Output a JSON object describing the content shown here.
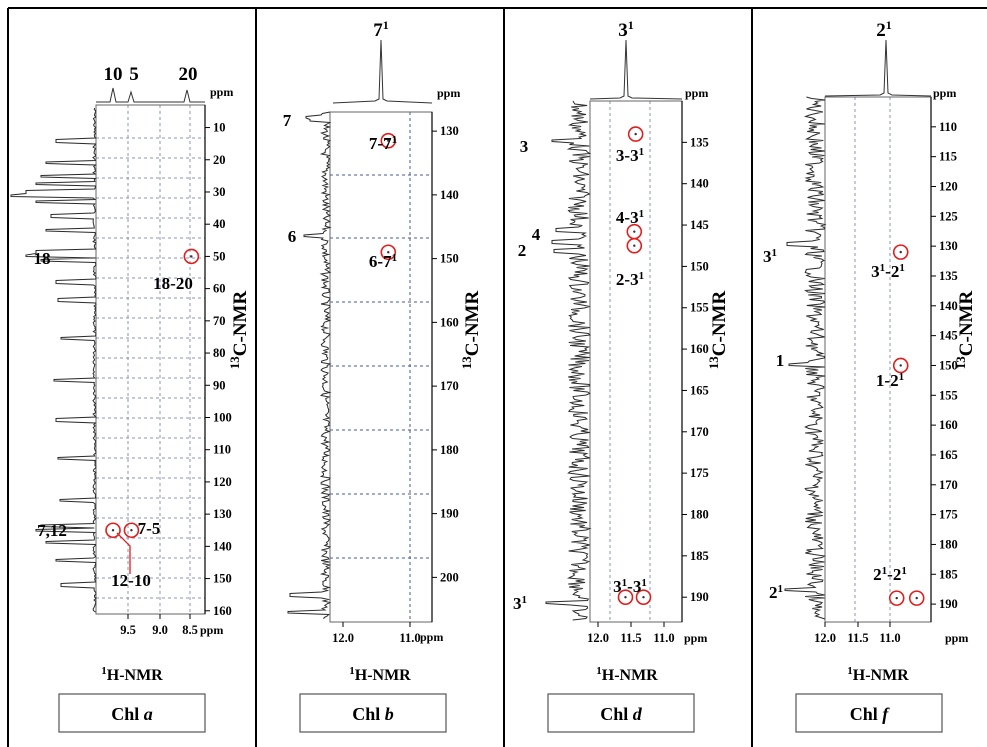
{
  "colors": {
    "trace": "#2b2b2b",
    "grid": "#8a93b8",
    "circle": "#e01e1e",
    "border": "#000000"
  },
  "panels": [
    {
      "id": "chl-a",
      "caption_prefix": "Chl ",
      "caption_letter": "a",
      "x_axis_title": "1H-NMR",
      "y_axis_title": "13C-NMR",
      "ppm_label": "ppm",
      "x_ticks": [
        "9.5",
        "9.0",
        "8.5"
      ],
      "y_ticks": [
        "10",
        "20",
        "30",
        "40",
        "50",
        "60",
        "70",
        "80",
        "90",
        "100",
        "110",
        "120",
        "130",
        "140",
        "150",
        "160"
      ],
      "top_trace_labels": [
        "10",
        "5",
        "20"
      ],
      "left_labels": [
        "18",
        "7,12"
      ],
      "cross_peaks": [
        {
          "label": "18-20",
          "h": 8.6,
          "c": 50
        },
        {
          "label": "7-5",
          "h": 9.48,
          "c": 135
        },
        {
          "label": "12-10",
          "h": 9.75,
          "c": 135
        }
      ]
    },
    {
      "id": "chl-b",
      "caption_prefix": "Chl ",
      "caption_letter": "b",
      "x_axis_title": "1H-NMR",
      "y_axis_title": "13C-NMR",
      "ppm_label": "ppm",
      "x_ticks": [
        "12.0",
        "11.0"
      ],
      "y_ticks": [
        "130",
        "140",
        "150",
        "160",
        "170",
        "180",
        "190",
        "200"
      ],
      "top_trace_labels": [
        "71"
      ],
      "left_labels": [
        "7",
        "6"
      ],
      "cross_peaks": [
        {
          "label": "7-71",
          "h": 11.4,
          "c": 131.5
        },
        {
          "label": "6-71",
          "h": 11.4,
          "c": 149
        }
      ]
    },
    {
      "id": "chl-d",
      "caption_prefix": "Chl ",
      "caption_letter": "d",
      "x_axis_title": "1H-NMR",
      "y_axis_title": "13C-NMR",
      "ppm_label": "ppm",
      "x_ticks": [
        "12.0",
        "11.5",
        "11.0"
      ],
      "y_ticks": [
        "135",
        "140",
        "145",
        "150",
        "155",
        "160",
        "165",
        "170",
        "175",
        "180",
        "185",
        "190"
      ],
      "top_trace_labels": [
        "31"
      ],
      "left_labels": [
        "3",
        "4",
        "2",
        "31"
      ],
      "cross_peaks": [
        {
          "label": "3-31",
          "h": 11.53,
          "c": 134
        },
        {
          "label": "4-31",
          "h": 11.55,
          "c": 145.8
        },
        {
          "label": "2-31",
          "h": 11.55,
          "c": 147.5
        },
        {
          "label": "31-31",
          "h": 11.65,
          "c": 190
        }
      ]
    },
    {
      "id": "chl-f",
      "caption_prefix": "Chl ",
      "caption_letter": "f",
      "x_axis_title": "1H-NMR",
      "y_axis_title": "13C-NMR",
      "ppm_label": "ppm",
      "x_ticks": [
        "12.0",
        "11.5",
        "11.0"
      ],
      "y_ticks": [
        "110",
        "115",
        "120",
        "125",
        "130",
        "135",
        "140",
        "145",
        "150",
        "155",
        "160",
        "165",
        "170",
        "175",
        "180",
        "185",
        "190"
      ],
      "top_trace_labels": [
        "21"
      ],
      "left_labels": [
        "31",
        "1",
        "21"
      ],
      "cross_peaks": [
        {
          "label": "31-21",
          "h": 11.25,
          "c": 131
        },
        {
          "label": "1-21",
          "h": 11.25,
          "c": 150
        },
        {
          "label": "21-21",
          "h": 11.25,
          "c": 189
        }
      ]
    }
  ]
}
